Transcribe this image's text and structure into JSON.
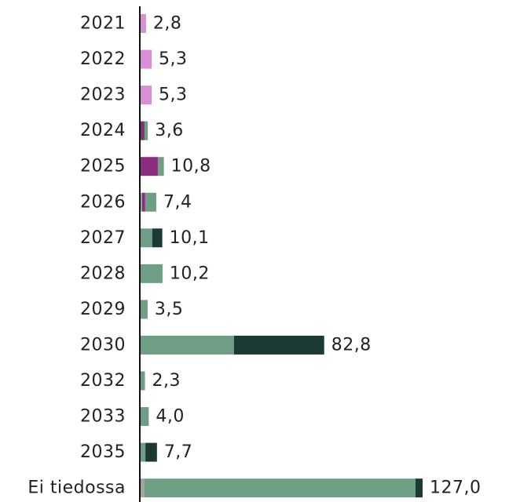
{
  "chart_data": {
    "type": "stacked-bar-horizontal",
    "categories": [
      "2021",
      "2022",
      "2023",
      "2024",
      "2025",
      "2026",
      "2027",
      "2028",
      "2029",
      "2030",
      "2032",
      "2033",
      "2035",
      "Ei tiedossa"
    ],
    "series": [
      {
        "color": "#d98fd6",
        "values": [
          2.8,
          5.3,
          5.3,
          null,
          null,
          null,
          null,
          null,
          null,
          null,
          null,
          null,
          null,
          null
        ]
      },
      {
        "color": "#a3a3a3",
        "values": [
          null,
          null,
          null,
          null,
          null,
          1.0,
          null,
          null,
          null,
          null,
          null,
          null,
          null,
          2.1
        ]
      },
      {
        "color": "#8a2d7e",
        "values": [
          null,
          null,
          null,
          2.1,
          8.1,
          1.4,
          null,
          null,
          null,
          null,
          null,
          null,
          null,
          null
        ]
      },
      {
        "color": "#6e9e83",
        "values": [
          null,
          null,
          null,
          1.5,
          2.7,
          5.0,
          5.6,
          10.2,
          3.5,
          42.3,
          2.3,
          4.0,
          2.5,
          121.7
        ]
      },
      {
        "color": "#1b3a33",
        "values": [
          null,
          null,
          null,
          null,
          null,
          null,
          4.5,
          null,
          null,
          40.5,
          null,
          null,
          5.2,
          3.2
        ]
      }
    ],
    "totals": [
      2.8,
      5.3,
      5.3,
      3.6,
      10.8,
      7.4,
      10.1,
      10.2,
      3.5,
      82.8,
      2.3,
      4.0,
      7.7,
      127.0
    ],
    "total_labels": [
      "2,8",
      "5,3",
      "5,3",
      "3,6",
      "10,8",
      "7,4",
      "10,1",
      "10,2",
      "3,5",
      "82,8",
      "2,3",
      "4,0",
      "7,7",
      "127,0"
    ],
    "xlim": [
      0,
      127
    ]
  }
}
